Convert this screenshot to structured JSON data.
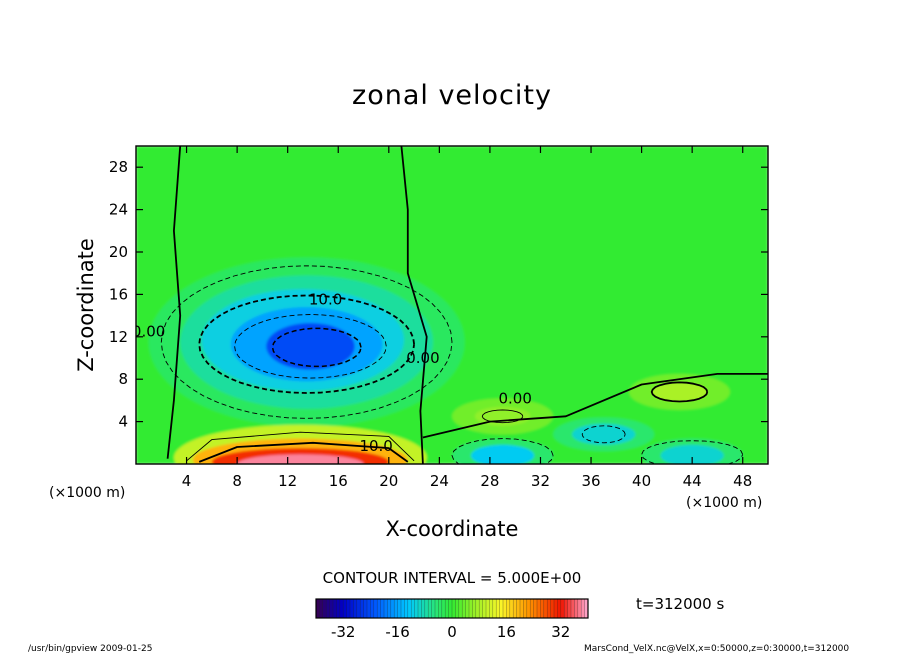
{
  "chart_data": {
    "type": "heatmap",
    "title": "zonal velocity",
    "xlabel": "X-coordinate",
    "ylabel": "Z-coordinate",
    "x_unit": "(×1000 m)",
    "y_unit": "(×1000 m)",
    "xlim": [
      0,
      50
    ],
    "ylim": [
      0,
      30
    ],
    "xticks": [
      4,
      8,
      12,
      16,
      20,
      24,
      28,
      32,
      36,
      40,
      44,
      48
    ],
    "yticks": [
      4,
      8,
      12,
      16,
      20,
      24,
      28
    ],
    "contour_interval_text": "CONTOUR INTERVAL = 5.000E+00",
    "time_text": "t=312000 s",
    "contour_labels": [
      {
        "text": "10.0",
        "x": 15.0,
        "y": 15.5
      },
      {
        "text": "0.00",
        "x": 1.0,
        "y": 12.5
      },
      {
        "text": "0.00",
        "x": 22.7,
        "y": 10.0
      },
      {
        "text": "0.00",
        "x": 30.0,
        "y": 6.2
      },
      {
        "text": "10.0",
        "x": 19.0,
        "y": 1.7
      }
    ],
    "colorbar": {
      "min": -40,
      "max": 40,
      "ticks": [
        -32,
        -16,
        0,
        16,
        32
      ],
      "colormap": "rainbow"
    },
    "field_features": [
      {
        "kind": "negative",
        "x": 13.5,
        "y": 11.5,
        "peak": -24
      },
      {
        "kind": "positive",
        "x": 13.0,
        "y": 0.6,
        "peak": 38
      },
      {
        "kind": "negative",
        "x": 29.0,
        "y": 0.8,
        "peak": -12
      },
      {
        "kind": "negative",
        "x": 37.0,
        "y": 2.8,
        "peak": -10
      },
      {
        "kind": "negative",
        "x": 44.0,
        "y": 0.8,
        "peak": -10
      },
      {
        "kind": "positive",
        "x": 43.0,
        "y": 6.8,
        "peak": 8
      },
      {
        "kind": "positive",
        "x": 29.0,
        "y": 4.5,
        "peak": 6
      }
    ]
  },
  "footer": {
    "left": "/usr/bin/gpview   2009-01-25",
    "right": "MarsCond_VelX.nc@VelX,x=0:50000,z=0:30000,t=312000"
  },
  "colors": {
    "background_field": "#33ee33",
    "frame": "#000000"
  }
}
